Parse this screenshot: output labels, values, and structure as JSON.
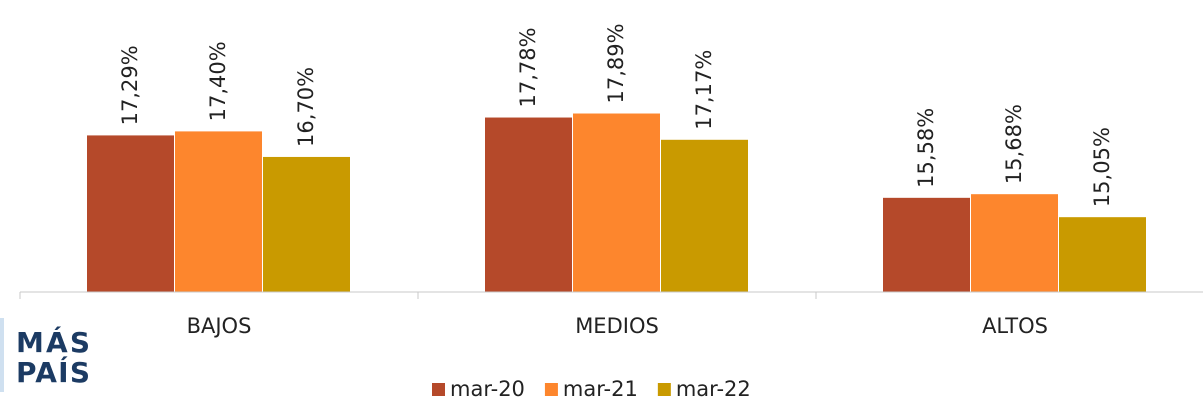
{
  "chart_data": {
    "type": "bar",
    "categories": [
      "BAJOS",
      "MEDIOS",
      "ALTOS"
    ],
    "series": [
      {
        "name": "mar-20",
        "color": "#b5492a",
        "values": [
          17.29,
          17.78,
          15.58
        ],
        "value_labels": [
          "17,29%",
          "17,78%",
          "15,58%"
        ]
      },
      {
        "name": "mar-21",
        "color": "#fd862d",
        "values": [
          17.4,
          17.89,
          15.68
        ],
        "value_labels": [
          "17,40%",
          "17,89%",
          "15,68%"
        ]
      },
      {
        "name": "mar-22",
        "color": "#c99a00",
        "values": [
          16.7,
          17.17,
          15.05
        ],
        "value_labels": [
          "16,70%",
          "17,17%",
          "15,05%"
        ]
      }
    ],
    "ylim": [
      13,
      21
    ],
    "grid": false,
    "legend": "bottom"
  },
  "logo": [
    "MÁS",
    "PAÍS"
  ]
}
